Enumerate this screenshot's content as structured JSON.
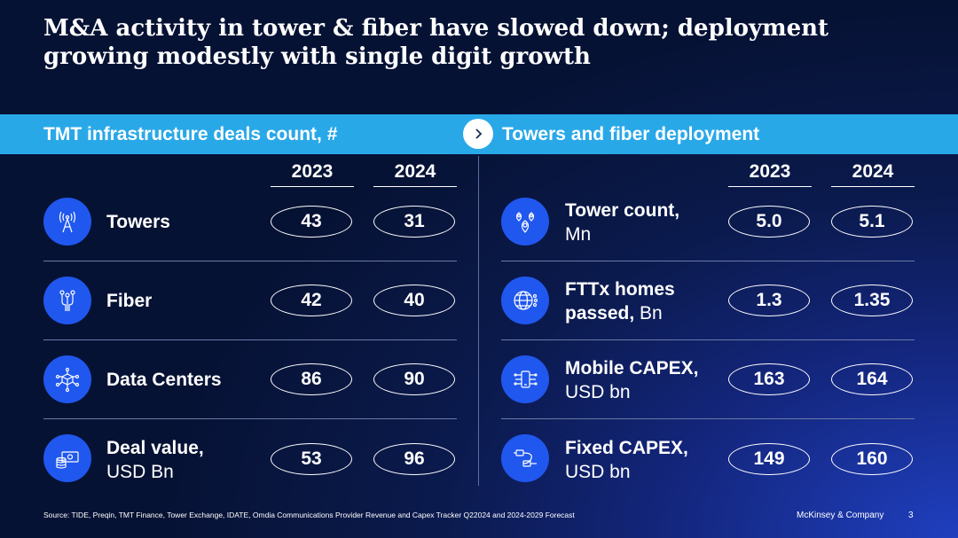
{
  "title": {
    "line1": "M&A activity in tower & fiber have slowed down; deployment",
    "line2": "growing modestly with single digit growth"
  },
  "left": {
    "header": "TMT infrastructure deals count, #",
    "years": [
      "2023",
      "2024"
    ],
    "rows": [
      {
        "icon": "cell-tower-icon",
        "label_bold": "Towers",
        "label_rest": "",
        "v2023": "43",
        "v2024": "31"
      },
      {
        "icon": "fiber-icon",
        "label_bold": "Fiber",
        "label_rest": "",
        "v2023": "42",
        "v2024": "40"
      },
      {
        "icon": "data-center-icon",
        "label_bold": "Data Centers",
        "label_rest": "",
        "v2023": "86",
        "v2024": "90"
      },
      {
        "icon": "money-stack-icon",
        "label_bold": "Deal value,",
        "label_rest": "USD Bn",
        "v2023": "53",
        "v2024": "96"
      }
    ]
  },
  "right": {
    "header": "Towers and fiber  deployment",
    "years": [
      "2023",
      "2024"
    ],
    "rows": [
      {
        "icon": "location-pins-icon",
        "label_bold": "Tower count,",
        "label_rest": "Mn",
        "v2023": "5.0",
        "v2024": "5.1"
      },
      {
        "icon": "globe-network-icon",
        "label_bold": "FTTx homes",
        "label_rest_bold": "passed,",
        "label_rest": " Bn",
        "v2023": "1.3",
        "v2024": "1.35"
      },
      {
        "icon": "mobile-circuit-icon",
        "label_bold": "Mobile CAPEX,",
        "label_rest": "USD bn",
        "v2023": "163",
        "v2024": "164"
      },
      {
        "icon": "cable-plug-icon",
        "label_bold": "Fixed CAPEX,",
        "label_rest": "USD bn",
        "v2023": "149",
        "v2024": "160"
      }
    ]
  },
  "footer": {
    "source": "Source: TIDE, Preqin, TMT Finance, Tower Exchange, IDATE, Omdia Communications Provider Revenue and Capex Tracker Q22024 and 2024-2029 Forecast",
    "brand": "McKinsey & Company",
    "page": "3"
  },
  "colors": {
    "band": "#29a8e8",
    "icon_bg": "#2057ee"
  }
}
